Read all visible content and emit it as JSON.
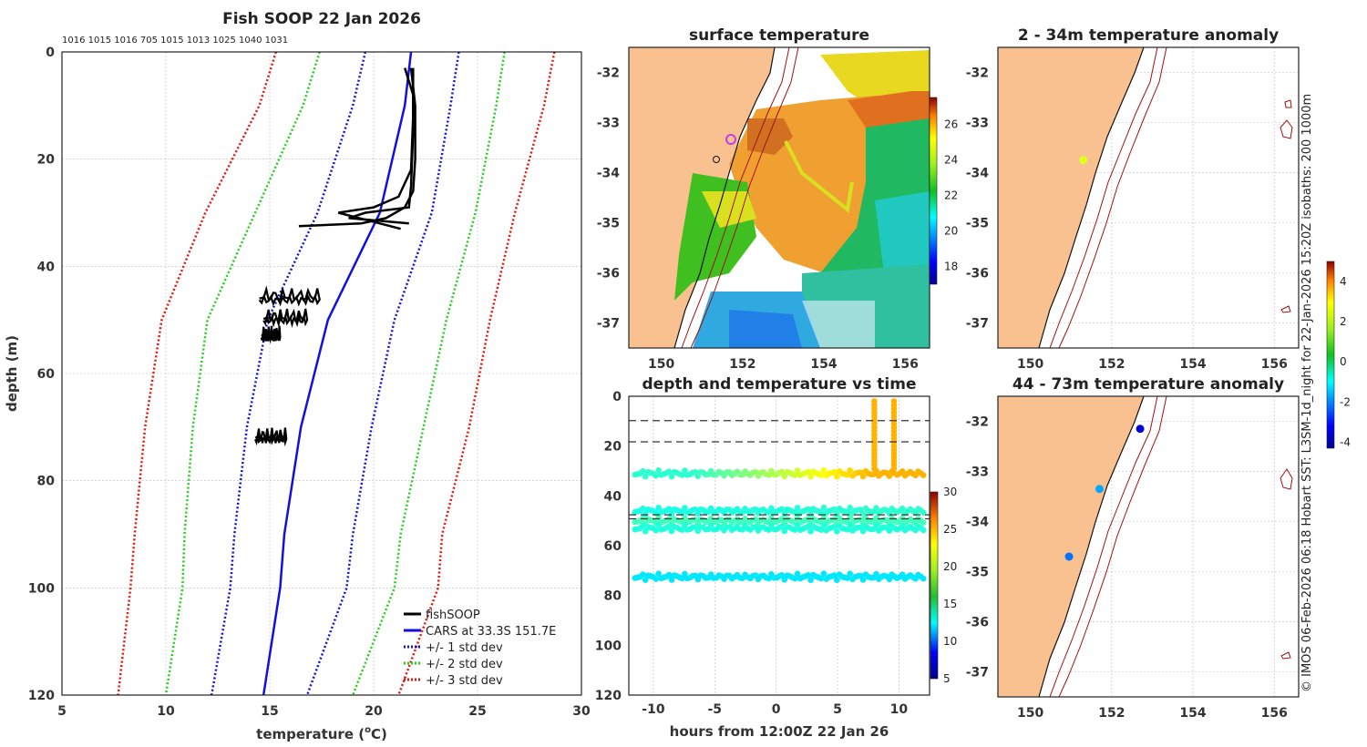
{
  "colors": {
    "red": "#e8120a",
    "green": "#22d01a",
    "blue": "#1010e0",
    "land": "#f9c18f",
    "black": "#000000"
  },
  "chart_data": [
    {
      "id": "profile",
      "type": "line",
      "title": "Fish SOOP 22 Jan 2026",
      "top_numbers": "1016 1015 1016 705 1015 1013 1025 1040 1031",
      "xlabel": "temperature (",
      "xlabel_sup": "o",
      "xlabel_tail": "C)",
      "ylabel": "depth (m)",
      "xlim": [
        5,
        30
      ],
      "ylim": [
        0,
        120
      ],
      "xticks": [
        "5",
        "10",
        "15",
        "20",
        "25",
        "30"
      ],
      "yticks": [
        "0",
        "20",
        "40",
        "60",
        "80",
        "100",
        "120"
      ],
      "legend": [
        "fishSOOP",
        "CARS at 33.3S 151.7E",
        "+/- 1 std dev",
        "+/- 2 std dev",
        "+/- 3 std dev"
      ],
      "depths": [
        0,
        10,
        30,
        50,
        70,
        90,
        100,
        120
      ],
      "cars_mean": [
        21.8,
        21.5,
        20.3,
        17.8,
        16.5,
        15.7,
        15.5,
        14.7
      ],
      "std_lo": [
        [
          19.6,
          19.0,
          17.3,
          14.9,
          13.9,
          13.3,
          13.1,
          12.2
        ],
        [
          17.4,
          16.6,
          14.3,
          12.0,
          11.3,
          10.9,
          10.8,
          10.0
        ],
        [
          15.3,
          14.5,
          11.9,
          9.8,
          9.0,
          8.5,
          8.3,
          7.7
        ]
      ],
      "std_hi": [
        [
          24.1,
          23.7,
          22.8,
          21.0,
          19.9,
          19.0,
          18.7,
          16.8
        ],
        [
          26.3,
          25.9,
          24.9,
          23.5,
          22.4,
          21.3,
          21.0,
          19.0
        ],
        [
          28.7,
          28.2,
          26.8,
          25.6,
          24.6,
          23.3,
          23.1,
          21.2
        ]
      ],
      "fish_casts": [
        {
          "t": [
            21.5,
            21.9,
            21.9,
            21.8,
            21.7,
            19.6,
            18.8,
            21.7
          ],
          "d": [
            3,
            8,
            15,
            25,
            29,
            30,
            31,
            32
          ]
        },
        {
          "t": [
            21.8,
            22.0,
            22.0,
            21.9,
            21.5,
            20.6,
            19.4,
            16.4
          ],
          "d": [
            3,
            10,
            20,
            26,
            29,
            31,
            32,
            32.5
          ]
        },
        {
          "t": [
            21.9,
            21.9,
            21.8,
            21.2,
            20.0,
            18.3,
            21.3
          ],
          "d": [
            3,
            12,
            22,
            27,
            29,
            30,
            33
          ]
        }
      ],
      "fish_blobs": [
        {
          "t0": 14.5,
          "t1": 17.4,
          "d": 45.5
        },
        {
          "t0": 14.7,
          "t1": 16.8,
          "d": 49.3
        },
        {
          "t0": 14.6,
          "t1": 15.5,
          "d": 52.5
        },
        {
          "t0": 14.3,
          "t1": 15.8,
          "d": 71.5
        }
      ]
    },
    {
      "id": "time_series",
      "type": "scatter",
      "title": "depth and temperature vs time",
      "xlabel": "hours from 12:00Z 22 Jan 26",
      "xlim": [
        -12,
        12.5
      ],
      "ylim": [
        0,
        120
      ],
      "xticks": [
        "-10",
        "-5",
        "0",
        "5",
        "10"
      ],
      "yticks": [
        "0",
        "20",
        "40",
        "60",
        "80",
        "100",
        "120"
      ],
      "colorbar": {
        "min": 5,
        "max": 30,
        "ticks": [
          "5",
          "10",
          "15",
          "20",
          "25",
          "30"
        ]
      },
      "dashed_depths": [
        9.8,
        18.3,
        47.6,
        49.2
      ],
      "bands": [
        {
          "depth": 31,
          "temp_start": 15.5,
          "temp_end": 22.5
        },
        {
          "depth": 46,
          "temp_start": 15.0,
          "temp_end": 15.5
        },
        {
          "depth": 50,
          "temp_start": 16.0,
          "temp_end": 16.0
        },
        {
          "depth": 53,
          "temp_start": 15.2,
          "temp_end": 15.2
        },
        {
          "depth": 72.5,
          "temp_start": 13.8,
          "temp_end": 13.8
        }
      ],
      "spikes": [
        {
          "hour": 8.0,
          "temp": 22.5
        },
        {
          "hour": 9.6,
          "temp": 22.5
        }
      ]
    },
    {
      "id": "sst_map",
      "type": "heatmap",
      "title": "surface temperature",
      "lon_range": [
        149.2,
        156.6
      ],
      "lat_range": [
        -37.5,
        -31.5
      ],
      "xticks": [
        "150",
        "152",
        "154",
        "156"
      ],
      "yticks": [
        "-32",
        "-33",
        "-34",
        "-35",
        "-36",
        "-37"
      ],
      "colorbar": {
        "min": 17,
        "max": 27.5,
        "ticks": [
          "18",
          "20",
          "22",
          "24",
          "26"
        ]
      }
    },
    {
      "id": "anomaly_shallow",
      "type": "scatter",
      "title": "2 - 34m temperature anomaly",
      "lon_range": [
        149.2,
        156.6
      ],
      "lat_range": [
        -37.5,
        -31.5
      ],
      "xticks": [
        "150",
        "152",
        "154",
        "156"
      ],
      "yticks": [
        "-32",
        "-33",
        "-34",
        "-35",
        "-36",
        "-37"
      ],
      "points": [
        {
          "lon": 151.3,
          "lat": -33.75,
          "anomaly": 1.2
        }
      ]
    },
    {
      "id": "anomaly_deep",
      "type": "scatter",
      "title": "44 - 73m temperature anomaly",
      "lon_range": [
        149.2,
        156.6
      ],
      "lat_range": [
        -37.5,
        -31.5
      ],
      "xticks": [
        "150",
        "152",
        "154",
        "156"
      ],
      "yticks": [
        "-32",
        "-33",
        "-34",
        "-35",
        "-36",
        "-37"
      ],
      "points": [
        {
          "lon": 152.7,
          "lat": -32.15,
          "anomaly": -3.5
        },
        {
          "lon": 151.7,
          "lat": -33.35,
          "anomaly": -1.6
        },
        {
          "lon": 150.95,
          "lat": -34.7,
          "anomaly": -2.1
        }
      ],
      "colorbar": {
        "min": -4.3,
        "max": 5,
        "ticks": [
          "-4",
          "-2",
          "0",
          "2",
          "4"
        ]
      }
    }
  ],
  "credit": "© IMOS 06-Feb-2026 06:18 Hobart SST: L3SM-1d_night for 22-Jan-2026 15:20Z isobaths: 200  1000m"
}
